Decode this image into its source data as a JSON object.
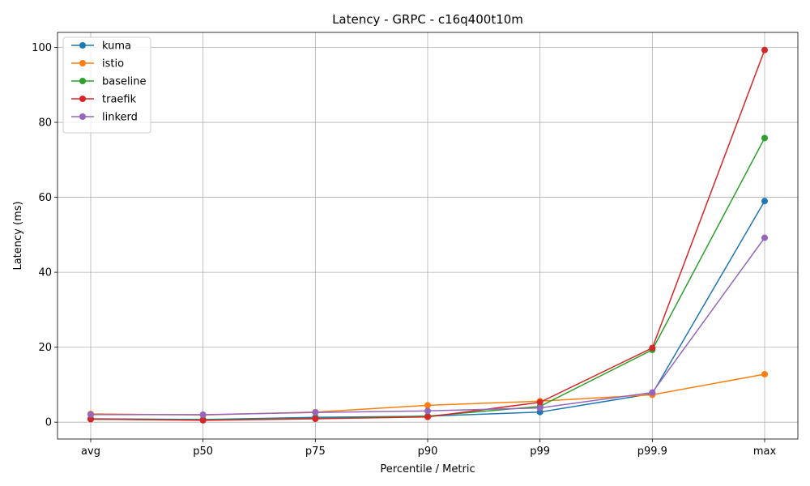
{
  "chart_data": {
    "type": "line",
    "title": "Latency - GRPC - c16q400t10m",
    "xlabel": "Percentile / Metric",
    "ylabel": "Latency (ms)",
    "categories": [
      "avg",
      "p50",
      "p75",
      "p90",
      "p99",
      "p99.9",
      "max"
    ],
    "ylim": [
      -4.5,
      104
    ],
    "yticks": [
      0,
      20,
      40,
      60,
      80,
      100
    ],
    "grid": true,
    "legend_position": "top-left",
    "series": [
      {
        "name": "kuma",
        "color": "#1f77b4",
        "values": [
          0.9,
          0.7,
          1.3,
          1.6,
          2.7,
          7.6,
          59.0
        ]
      },
      {
        "name": "istio",
        "color": "#ff7f0e",
        "values": [
          2.2,
          1.9,
          2.7,
          4.5,
          5.6,
          7.3,
          12.8
        ]
      },
      {
        "name": "baseline",
        "color": "#2ca02c",
        "values": [
          0.8,
          0.6,
          1.0,
          1.6,
          4.2,
          19.3,
          75.8
        ]
      },
      {
        "name": "traefik",
        "color": "#d62728",
        "values": [
          0.8,
          0.5,
          0.9,
          1.4,
          5.3,
          19.8,
          99.3
        ]
      },
      {
        "name": "linkerd",
        "color": "#9467bd",
        "values": [
          2.0,
          2.0,
          2.6,
          3.0,
          3.8,
          7.9,
          49.2
        ]
      }
    ]
  }
}
